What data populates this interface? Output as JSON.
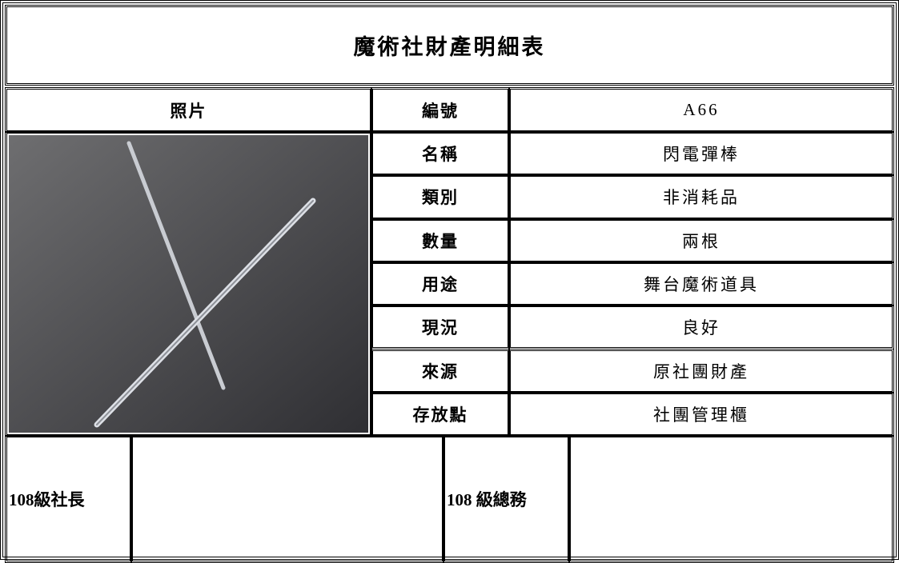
{
  "title": "魔術社財產明細表",
  "photo_header": "照片",
  "fields": [
    {
      "label": "編號",
      "value": "A66"
    },
    {
      "label": "名稱",
      "value": "閃電彈棒"
    },
    {
      "label": "類別",
      "value": "非消耗品"
    },
    {
      "label": "數量",
      "value": "兩根"
    },
    {
      "label": "用途",
      "value": "舞台魔術道具"
    },
    {
      "label": "現況",
      "value": "良好"
    },
    {
      "label": "來源",
      "value": "原社團財產"
    },
    {
      "label": "存放點",
      "value": "社團管理櫃"
    }
  ],
  "signatures": [
    {
      "label": "108級社長"
    },
    {
      "label": "108 級總務"
    }
  ]
}
